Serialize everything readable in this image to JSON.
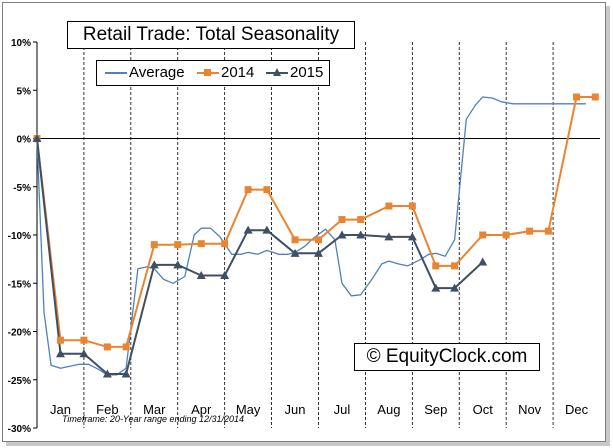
{
  "chart_data": {
    "type": "line",
    "title": "Retail Trade: Total Seasonality",
    "categories": [
      "Jan",
      "Feb",
      "Mar",
      "Apr",
      "May",
      "Jun",
      "Jul",
      "Aug",
      "Sep",
      "Oct",
      "Nov",
      "Dec"
    ],
    "ylim": [
      -30,
      10
    ],
    "y_ticks": [
      "10%",
      "5%",
      "0%",
      "-5%",
      "-10%",
      "-15%",
      "-20%",
      "-25%",
      "-30%"
    ],
    "y_tick_values": [
      10,
      5,
      0,
      -5,
      -10,
      -15,
      -20,
      -25,
      -30
    ],
    "grid": "vertical month separators (dashed)",
    "legend_position": "top-left",
    "series": [
      {
        "name": "Average",
        "color": "#4f81bd",
        "x": [
          0,
          0.15,
          0.3,
          0.5,
          0.7,
          0.9,
          1.1,
          1.3,
          1.5,
          1.7,
          1.9,
          2.15,
          2.35,
          2.5,
          2.7,
          2.9,
          3.15,
          3.35,
          3.5,
          3.7,
          3.9,
          4.15,
          4.35,
          4.5,
          4.7,
          4.9,
          5.15,
          5.35,
          5.5,
          5.7,
          5.9,
          6.15,
          6.35,
          6.5,
          6.7,
          6.9,
          7.15,
          7.35,
          7.5,
          7.7,
          7.9,
          8.15,
          8.35,
          8.5,
          8.7,
          8.9,
          9.15,
          9.35,
          9.5,
          9.7,
          9.9,
          10.15,
          10.35,
          10.5,
          10.7,
          10.9,
          11.15,
          11.35,
          11.5,
          11.7
        ],
        "values": [
          0,
          -18,
          -23.5,
          -23.8,
          -23.6,
          -23.4,
          -23.4,
          -23.9,
          -24.5,
          -24.5,
          -23.8,
          -13.5,
          -13.3,
          -13.5,
          -14.6,
          -15,
          -14.3,
          -10,
          -9.3,
          -9.3,
          -10.2,
          -12,
          -12,
          -11.8,
          -12,
          -11.6,
          -12,
          -12,
          -11.8,
          -11.2,
          -10.3,
          -9.4,
          -10.5,
          -15,
          -16.3,
          -16.2,
          -14.5,
          -13,
          -12.7,
          -13,
          -13.2,
          -12.6,
          -12,
          -11.9,
          -12.2,
          -10.5,
          2,
          3.5,
          4.3,
          4.2,
          3.8,
          3.6,
          3.6,
          3.6,
          3.6,
          3.6,
          3.6,
          3.6,
          3.6,
          3.6
        ],
        "note": "average path"
      },
      {
        "name": "2014",
        "color": "#e98531",
        "x": [
          0,
          0.5,
          1,
          1.5,
          1.9,
          2.5,
          3,
          3.5,
          4,
          4.5,
          4.9,
          5.5,
          6,
          6.5,
          6.9,
          7.5,
          8,
          8.5,
          8.9,
          9.5,
          10,
          10.5,
          10.9,
          11.5,
          11.9
        ],
        "values": [
          0,
          -20.9,
          -20.9,
          -21.6,
          -21.6,
          -11,
          -11,
          -10.9,
          -10.9,
          -5.3,
          -5.3,
          -10.5,
          -10.5,
          -8.4,
          -8.4,
          -7,
          -7,
          -13.2,
          -13.2,
          -10,
          -10,
          -9.6,
          -9.6,
          4.3,
          4.3
        ]
      },
      {
        "name": "2015",
        "color": "#3f4f64",
        "x": [
          0,
          0.5,
          1,
          1.5,
          1.9,
          2.5,
          3,
          3.5,
          4,
          4.5,
          4.9,
          5.5,
          6,
          6.5,
          6.9,
          7.5,
          8,
          8.5,
          8.9,
          9.5
        ],
        "values": [
          0,
          -22.3,
          -22.3,
          -24.4,
          -24.4,
          -13.1,
          -13.1,
          -14.2,
          -14.2,
          -9.5,
          -9.5,
          -11.9,
          -11.9,
          -10,
          -10,
          -10.2,
          -10.2,
          -15.5,
          -15.5,
          -12.8
        ]
      }
    ],
    "note": "Timeframe: 20-Year range ending 12/31/2014"
  },
  "copyright_text": "© EquityClock.com",
  "timeframe_text": "Timeframe: 20-Year range ending 12/31/2014"
}
